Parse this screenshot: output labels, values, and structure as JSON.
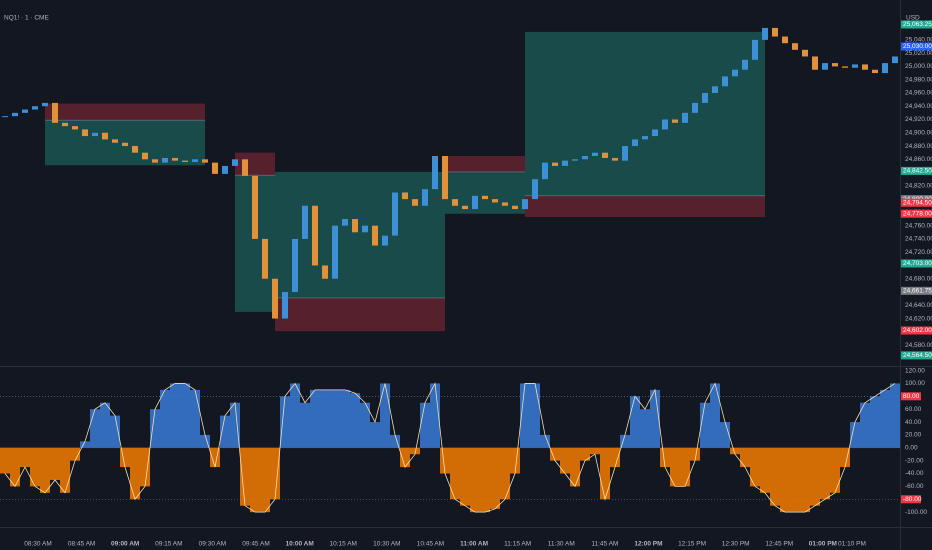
{
  "chart_data": {
    "type": "candlestick",
    "title": "NQ1! · 1 · CME",
    "currency": "USD",
    "up_color": "#3d8fd6",
    "down_color": "#e0913a",
    "close": [
      24925,
      24930,
      24935,
      24940,
      24945,
      24915,
      24910,
      24905,
      24895,
      24900,
      24890,
      24885,
      24880,
      24870,
      24860,
      24855,
      24862,
      24858,
      24856,
      24860,
      24855,
      24838,
      24850,
      24860,
      24835,
      24740,
      24680,
      24620,
      24660,
      24740,
      24790,
      24700,
      24680,
      24760,
      24770,
      24750,
      24760,
      24730,
      24745,
      24810,
      24800,
      24790,
      24815,
      24865,
      24800,
      24790,
      24785,
      24805,
      24800,
      24795,
      24790,
      24785,
      24800,
      24830,
      24855,
      24850,
      24858,
      24860,
      24865,
      24870,
      24862,
      24858,
      24880,
      24890,
      24895,
      24905,
      24920,
      24915,
      24930,
      24945,
      24960,
      24970,
      24985,
      24995,
      25010,
      25040,
      25058,
      25045,
      25035,
      25025,
      25015,
      24995,
      25005,
      25000,
      24998,
      25003,
      24995,
      24990,
      25005,
      25015
    ],
    "ylim": [
      24550,
      25082
    ],
    "yticks": [
      {
        "value": 24580,
        "label": "24,580.00"
      },
      {
        "value": 24600,
        "label": "24,600.00"
      },
      {
        "value": 24620,
        "label": "24,620.00"
      },
      {
        "value": 24640,
        "label": "24,640.00"
      },
      {
        "value": 24660,
        "label": "24,660.00"
      },
      {
        "value": 24680,
        "label": "24,680.00"
      },
      {
        "value": 24700,
        "label": "24,700.00"
      },
      {
        "value": 24720,
        "label": "24,720.00"
      },
      {
        "value": 24740,
        "label": "24,740.00"
      },
      {
        "value": 24760,
        "label": "24,760.00"
      },
      {
        "value": 24780,
        "label": "24,780.00"
      },
      {
        "value": 24820,
        "label": "24,820.00"
      },
      {
        "value": 24860,
        "label": "24,860.00"
      },
      {
        "value": 24880,
        "label": "24,880.00"
      },
      {
        "value": 24900,
        "label": "24,900.00"
      },
      {
        "value": 24920,
        "label": "24,920.00"
      },
      {
        "value": 24940,
        "label": "24,940.00"
      },
      {
        "value": 24960,
        "label": "24,960.00"
      },
      {
        "value": 24980,
        "label": "24,980.00"
      },
      {
        "value": 25000,
        "label": "25,000.00"
      },
      {
        "value": 25020,
        "label": "25,020.00"
      },
      {
        "value": 25040,
        "label": "25,040.00"
      },
      {
        "value": 25060,
        "label": "25,060.00"
      }
    ],
    "price_labels": [
      {
        "value": 25063.25,
        "label": "25,063.25",
        "color": "#22ab94"
      },
      {
        "value": 25030,
        "label": "25,030.00",
        "color": "#2962ff"
      },
      {
        "value": 24842.5,
        "label": "24,842.50",
        "color": "#22ab94"
      },
      {
        "value": 24800,
        "label": "24,800.00",
        "color": "#787b86"
      },
      {
        "value": 24794.5,
        "label": "24,794.50",
        "color": "#f23645"
      },
      {
        "value": 24778,
        "label": "24,778.00",
        "color": "#f23645"
      },
      {
        "value": 24703,
        "label": "24,703.00",
        "color": "#22ab94"
      },
      {
        "value": 24661.75,
        "label": "24,661.75",
        "color": "#787b86"
      },
      {
        "value": 24602,
        "label": "24,602.00",
        "color": "#f23645"
      },
      {
        "value": 24564.5,
        "label": "24,564.50",
        "color": "#22ab94"
      }
    ],
    "positions": [
      {
        "start": 4,
        "end": 20,
        "entry": 24919,
        "target": 24851,
        "stop": 24944
      },
      {
        "start": 23,
        "end": 27,
        "entry": 24836,
        "target": 24630,
        "stop": 24870
      },
      {
        "start": 27,
        "end": 44,
        "entry": 24651,
        "target": 24841,
        "stop": 24601
      },
      {
        "start": 44,
        "end": 52,
        "entry": 24841,
        "target": 24778,
        "stop": 24865
      },
      {
        "start": 52,
        "end": 76,
        "entry": 24805,
        "target": 25052,
        "stop": 24773
      }
    ],
    "oscillator": {
      "values": [
        -40,
        -60,
        -30,
        -60,
        -70,
        -50,
        -70,
        -20,
        10,
        60,
        70,
        50,
        -30,
        -80,
        -60,
        60,
        90,
        100,
        100,
        90,
        20,
        -30,
        50,
        70,
        -90,
        -100,
        -100,
        -80,
        80,
        100,
        70,
        90,
        90,
        90,
        90,
        85,
        70,
        40,
        100,
        20,
        -30,
        -10,
        70,
        100,
        -40,
        -80,
        -90,
        -100,
        -100,
        -95,
        -80,
        -40,
        100,
        100,
        20,
        -20,
        -40,
        -60,
        -20,
        -10,
        -80,
        -30,
        20,
        80,
        60,
        90,
        -30,
        -60,
        -60,
        -20,
        70,
        100,
        40,
        -10,
        -30,
        -60,
        -70,
        -90,
        -100,
        -100,
        -100,
        -90,
        -80,
        -70,
        -30,
        40,
        70,
        80,
        90,
        100
      ],
      "pos_color": "#3a7bd5",
      "neg_color": "#f57c00",
      "ylim": [
        -120,
        124
      ],
      "yticks": [
        {
          "value": 120,
          "label": "120.00"
        },
        {
          "value": 100,
          "label": "100.00"
        },
        {
          "value": 60,
          "label": "60.00"
        },
        {
          "value": 40,
          "label": "40.00"
        },
        {
          "value": 20,
          "label": "20.00"
        },
        {
          "value": 0,
          "label": "0.00"
        },
        {
          "value": -20,
          "label": "-20.00"
        },
        {
          "value": -40,
          "label": "-40.00"
        },
        {
          "value": -60,
          "label": "-60.00"
        },
        {
          "value": -100,
          "label": "-100.00"
        }
      ],
      "levels": [
        {
          "value": 80,
          "label": "80.00"
        },
        {
          "value": -80,
          "label": "-80.00"
        }
      ]
    },
    "x_labels": [
      "08:30 AM",
      "08:45 AM",
      "09:00 AM",
      "09:15 AM",
      "09:30 AM",
      "09:45 AM",
      "10:00 AM",
      "10:15 AM",
      "10:30 AM",
      "10:45 AM",
      "11:00 AM",
      "11:15 AM",
      "11:30 AM",
      "11:45 AM",
      "12:00 PM",
      "12:15 PM",
      "12:30 PM",
      "12:45 PM",
      "01:00 PM",
      "01:10 PM"
    ]
  }
}
